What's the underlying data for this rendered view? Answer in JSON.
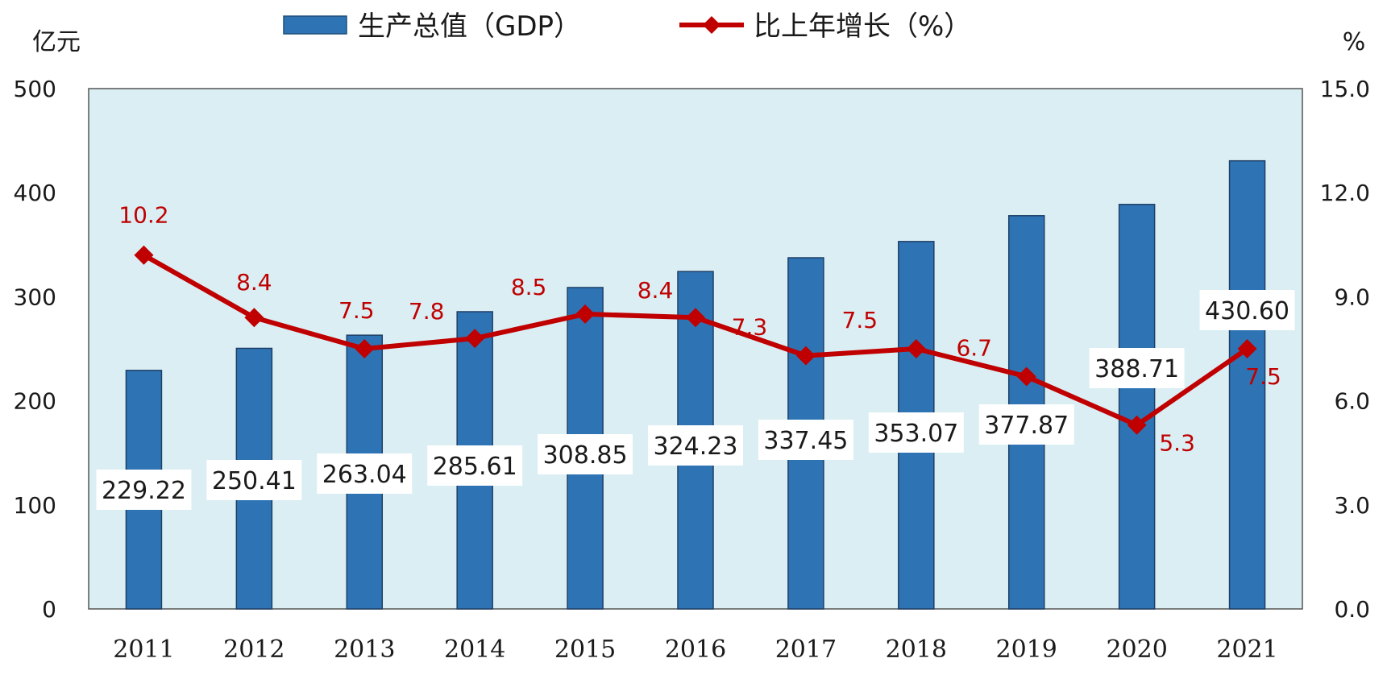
{
  "chart_data": {
    "type": "bar",
    "categories": [
      "2011",
      "2012",
      "2013",
      "2014",
      "2015",
      "2016",
      "2017",
      "2018",
      "2019",
      "2020",
      "2021"
    ],
    "series": [
      {
        "name": "生产总值（GDP）",
        "type": "bar",
        "axis": "left",
        "color": "#2E74B5",
        "values": [
          229.22,
          250.41,
          263.04,
          285.61,
          308.85,
          324.23,
          337.45,
          353.07,
          377.87,
          388.71,
          430.6
        ],
        "labels": [
          "229.22",
          "250.41",
          "263.04",
          "285.61",
          "308.85",
          "324.23",
          "337.45",
          "353.07",
          "377.87",
          "388.71",
          "430.60"
        ]
      },
      {
        "name": "比上年增长（%）",
        "type": "line",
        "axis": "right",
        "color": "#C00000",
        "marker": "diamond",
        "values": [
          10.2,
          8.4,
          7.5,
          7.8,
          8.5,
          8.4,
          7.3,
          7.5,
          6.7,
          5.3,
          7.5
        ],
        "labels": [
          "10.2",
          "8.4",
          "7.5",
          "7.8",
          "8.5",
          "8.4",
          "7.3",
          "7.5",
          "6.7",
          "5.3",
          "7.5"
        ]
      }
    ],
    "y_left": {
      "unit": "亿元",
      "range": [
        0,
        500
      ],
      "ticks": [
        "0",
        "100",
        "200",
        "300",
        "400",
        "500"
      ]
    },
    "y_right": {
      "unit": "%",
      "range": [
        0,
        15
      ],
      "ticks": [
        "0.0",
        "3.0",
        "6.0",
        "9.0",
        "12.0",
        "15.0"
      ]
    },
    "grid": false,
    "plot_background": "#DAEEF3",
    "legend_position": "top"
  }
}
